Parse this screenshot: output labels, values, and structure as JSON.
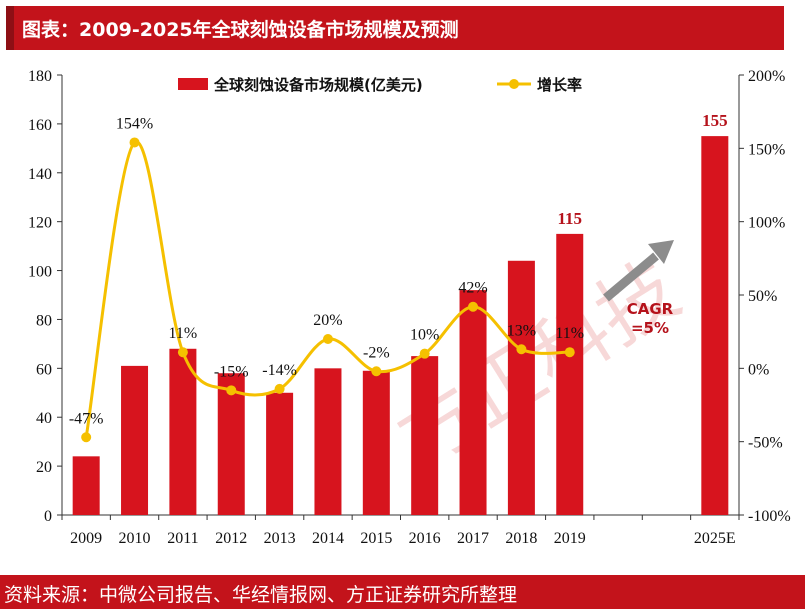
{
  "header": {
    "title": "图表：2009-2025年全球刻蚀设备市场规模及预测"
  },
  "footer": {
    "source": "资料来源：中微公司报告、华经情报网、方正证券研究所整理"
  },
  "watermark": "方正科技",
  "colors": {
    "bar": "#d7141e",
    "line": "#f5c000",
    "title_bg": "#c3131b",
    "arrow": "#8c8c8c"
  },
  "chart_data": {
    "type": "bar",
    "categories": [
      "2009",
      "2010",
      "2011",
      "2012",
      "2013",
      "2014",
      "2015",
      "2016",
      "2017",
      "2018",
      "2019",
      "2025E"
    ],
    "series": [
      {
        "name": "全球刻蚀设备市场规模(亿美元)",
        "type": "bar",
        "axis": "left",
        "values": [
          24,
          61,
          68,
          58,
          50,
          60,
          59,
          65,
          92,
          104,
          115,
          155
        ]
      },
      {
        "name": "增长率",
        "type": "line",
        "axis": "right",
        "values": [
          -47,
          154,
          11,
          -15,
          -14,
          20,
          -2,
          10,
          42,
          13,
          11,
          null
        ],
        "labels": [
          "-47%",
          "154%",
          "11%",
          "-15%",
          "-14%",
          "20%",
          "-2%",
          "10%",
          "42%",
          "13%",
          "11%",
          ""
        ]
      }
    ],
    "bar_labels": [
      {
        "category": "2019",
        "text": "115"
      },
      {
        "category": "2025E",
        "text": "155"
      }
    ],
    "y_left": {
      "min": 0,
      "max": 180,
      "step": 20,
      "ticks": [
        "0",
        "20",
        "40",
        "60",
        "80",
        "100",
        "120",
        "140",
        "160",
        "180"
      ]
    },
    "y_right": {
      "min": -100,
      "max": 200,
      "step": 50,
      "ticks": [
        "-100%",
        "-50%",
        "0%",
        "50%",
        "100%",
        "150%",
        "200%"
      ]
    },
    "annotation": {
      "lines": [
        "CAGR",
        "=5%"
      ]
    },
    "legend": "top-center",
    "grid": false
  }
}
